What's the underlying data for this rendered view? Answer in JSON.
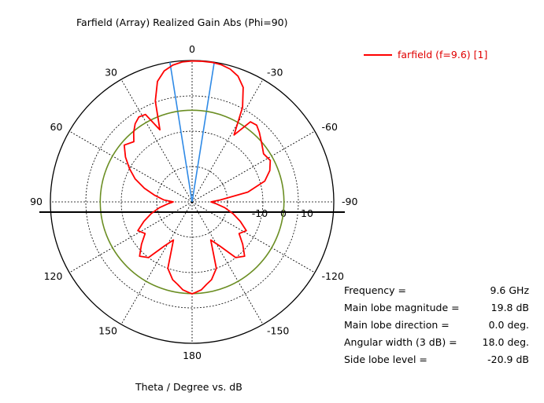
{
  "chart_data": {
    "type": "polar",
    "title": "Farfield (Array) Realized Gain Abs (Phi=90)",
    "xlabel": "Theta / Degree vs. dB",
    "legend": {
      "placement": "top-right",
      "entries": [
        {
          "name": "farfield (f=9.6) [1]",
          "color": "#ff0000"
        }
      ]
    },
    "angle_labels": [
      {
        "deg": 0,
        "text": "0"
      },
      {
        "deg": 30,
        "text": "30"
      },
      {
        "deg": -30,
        "text": "-30"
      },
      {
        "deg": 60,
        "text": "60"
      },
      {
        "deg": -60,
        "text": "-60"
      },
      {
        "deg": 90,
        "text": "90"
      },
      {
        "deg": -90,
        "text": "-90"
      },
      {
        "deg": 120,
        "text": "120"
      },
      {
        "deg": -120,
        "text": "-120"
      },
      {
        "deg": 150,
        "text": "150"
      },
      {
        "deg": -150,
        "text": "-150"
      },
      {
        "deg": 180,
        "text": "180"
      }
    ],
    "radial_labels": [
      {
        "value": -10,
        "text": "-10"
      },
      {
        "value": 0,
        "text": "0"
      },
      {
        "value": 10,
        "text": "10"
      }
    ],
    "r_range_db": [
      -40,
      20
    ],
    "grid": true,
    "series": [
      {
        "name": "farfield (f=9.6) [1]",
        "color": "#ff0000",
        "theta_deg": [
          0,
          4,
          8,
          12,
          16,
          20,
          24,
          28,
          32,
          36,
          40,
          44,
          50,
          56,
          62,
          68,
          74,
          80,
          86,
          90,
          94,
          100,
          106,
          112,
          118,
          124,
          130,
          136,
          142,
          148,
          154,
          160,
          166,
          170,
          174,
          178,
          180,
          182,
          186,
          190,
          194,
          200,
          206,
          212,
          218,
          224,
          230,
          236,
          242,
          248,
          254,
          260,
          266,
          270,
          274,
          280,
          286,
          292,
          298,
          304,
          310,
          316,
          320,
          324,
          328,
          332,
          336,
          340,
          344,
          348,
          352,
          356,
          360
        ],
        "gain_db": [
          19.8,
          19.5,
          18.6,
          16.8,
          13.2,
          5.5,
          -6.5,
          2.0,
          2.5,
          1.0,
          -1.5,
          -4.5,
          -2.5,
          -6,
          -10,
          -14,
          -19,
          -24,
          -28,
          -32,
          -30,
          -26,
          -22,
          -18,
          -14,
          -16,
          -12,
          -8,
          -10,
          -18,
          -22,
          -10,
          -6,
          -4.5,
          -2.5,
          -1.5,
          -1.0,
          -1.5,
          -2.5,
          -4.5,
          -6,
          -10,
          -22,
          -18,
          -10,
          -8,
          -12,
          -16,
          -14,
          -18,
          -22,
          -26,
          -30,
          -32,
          -28,
          -16,
          -8,
          -4.5,
          -2.5,
          -3.5,
          -1.5,
          1.0,
          2.5,
          2.0,
          -6.5,
          5.5,
          13.2,
          16.8,
          18.6,
          19.5,
          19.8,
          19.8,
          19.8
        ]
      }
    ],
    "overlays": [
      {
        "name": "main lobe 3 dB beamwidth",
        "color": "#2f8ae6",
        "theta_deg": [
          -9,
          9
        ]
      },
      {
        "name": "side lobe level",
        "color": "#6b8e23",
        "value_db": -1.1
      }
    ],
    "annotations": [
      {
        "label": "Frequency =",
        "value": "9.6 GHz"
      },
      {
        "label": "Main lobe magnitude =",
        "value": "19.8 dB"
      },
      {
        "label": "Main lobe direction =",
        "value": "0.0 deg."
      },
      {
        "label": "Angular width (3 dB) =",
        "value": "18.0 deg."
      },
      {
        "label": "Side lobe level =",
        "value": "-20.9 dB"
      }
    ]
  }
}
